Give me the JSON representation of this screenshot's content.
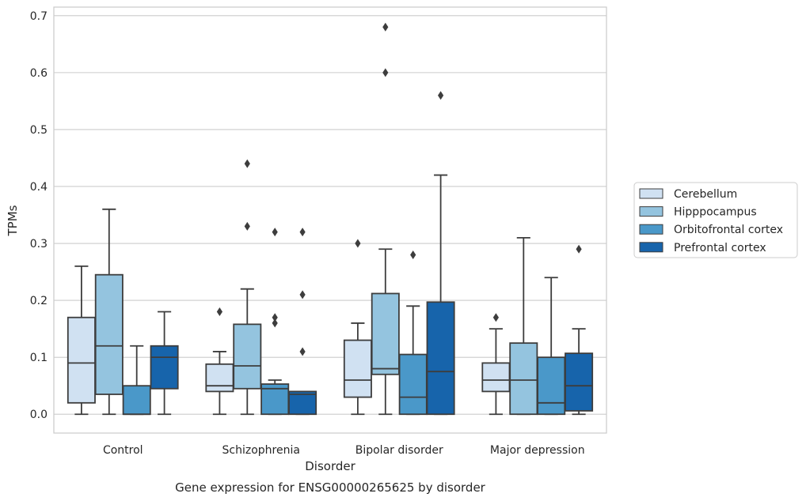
{
  "chart_data": {
    "type": "box",
    "title": "Gene expression for ENSG00000265625 by disorder",
    "xlabel": "Disorder",
    "ylabel": "TPMs",
    "ylim": [
      -0.033,
      0.715
    ],
    "yticks": [
      "0.0",
      "0.1",
      "0.2",
      "0.3",
      "0.4",
      "0.5",
      "0.6",
      "0.7"
    ],
    "grid": true,
    "legend_position": "right",
    "categories": [
      "Control",
      "Schizophrenia",
      "Bipolar disorder",
      "Major depression"
    ],
    "series": [
      {
        "name": "Cerebellum",
        "color": "#d0e1f2",
        "boxes": [
          {
            "whislo": 0.0,
            "q1": 0.02,
            "med": 0.09,
            "q3": 0.17,
            "whishi": 0.26,
            "fliers": []
          },
          {
            "whislo": 0.0,
            "q1": 0.04,
            "med": 0.05,
            "q3": 0.088,
            "whishi": 0.11,
            "fliers": [
              0.18
            ]
          },
          {
            "whislo": 0.0,
            "q1": 0.03,
            "med": 0.06,
            "q3": 0.13,
            "whishi": 0.16,
            "fliers": [
              0.3
            ]
          },
          {
            "whislo": 0.0,
            "q1": 0.04,
            "med": 0.06,
            "q3": 0.09,
            "whishi": 0.15,
            "fliers": [
              0.17
            ]
          }
        ]
      },
      {
        "name": "Hipppocampus",
        "color": "#94c4df",
        "boxes": [
          {
            "whislo": 0.0,
            "q1": 0.035,
            "med": 0.12,
            "q3": 0.245,
            "whishi": 0.36,
            "fliers": []
          },
          {
            "whislo": 0.0,
            "q1": 0.045,
            "med": 0.085,
            "q3": 0.158,
            "whishi": 0.22,
            "fliers": [
              0.33,
              0.44
            ]
          },
          {
            "whislo": 0.0,
            "q1": 0.07,
            "med": 0.08,
            "q3": 0.212,
            "whishi": 0.29,
            "fliers": [
              0.6,
              0.68
            ]
          },
          {
            "whislo": 0.0,
            "q1": 0.0,
            "med": 0.06,
            "q3": 0.125,
            "whishi": 0.31,
            "fliers": []
          }
        ]
      },
      {
        "name": "Orbitofrontal cortex",
        "color": "#4a98c9",
        "boxes": [
          {
            "whislo": 0.0,
            "q1": 0.0,
            "med": 0.0,
            "q3": 0.05,
            "whishi": 0.12,
            "fliers": []
          },
          {
            "whislo": 0.0,
            "q1": 0.0,
            "med": 0.045,
            "q3": 0.053,
            "whishi": 0.06,
            "fliers": [
              0.16,
              0.17,
              0.32
            ]
          },
          {
            "whislo": 0.0,
            "q1": 0.0,
            "med": 0.03,
            "q3": 0.105,
            "whishi": 0.19,
            "fliers": [
              0.28
            ]
          },
          {
            "whislo": 0.0,
            "q1": 0.0,
            "med": 0.02,
            "q3": 0.1,
            "whishi": 0.24,
            "fliers": []
          }
        ]
      },
      {
        "name": "Prefrontal cortex",
        "color": "#1764ab",
        "boxes": [
          {
            "whislo": 0.0,
            "q1": 0.045,
            "med": 0.1,
            "q3": 0.12,
            "whishi": 0.18,
            "fliers": []
          },
          {
            "whislo": 0.0,
            "q1": 0.0,
            "med": 0.035,
            "q3": 0.04,
            "whishi": 0.04,
            "fliers": [
              0.11,
              0.21,
              0.32
            ]
          },
          {
            "whislo": 0.0,
            "q1": 0.0,
            "med": 0.075,
            "q3": 0.197,
            "whishi": 0.42,
            "fliers": [
              0.56
            ]
          },
          {
            "whislo": 0.0,
            "q1": 0.006,
            "med": 0.05,
            "q3": 0.107,
            "whishi": 0.15,
            "fliers": [
              0.29
            ]
          }
        ]
      }
    ]
  }
}
